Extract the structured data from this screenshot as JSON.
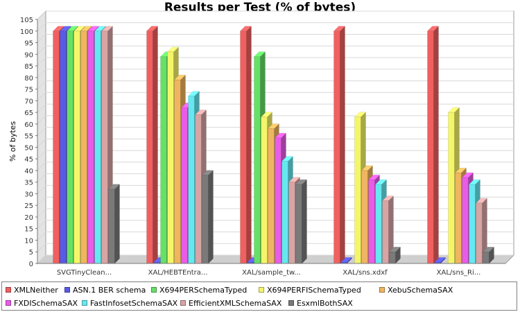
{
  "chart_data": {
    "type": "bar",
    "title": "Results per Test (% of bytes)",
    "ylabel": "% of bytes",
    "xlabel": "",
    "ylim": [
      0,
      105
    ],
    "y_ticks": [
      0,
      5,
      10,
      15,
      20,
      25,
      30,
      35,
      40,
      45,
      50,
      55,
      60,
      65,
      70,
      75,
      80,
      85,
      90,
      95,
      100,
      105
    ],
    "grid": true,
    "legend_position": "bottom",
    "categories": [
      "SVGTinyClean...",
      "XAL/HEBTEntra...",
      "XAL/sample_tw...",
      "XAL/sns.xdxf",
      "XAL/sns_Ri..."
    ],
    "series": [
      {
        "name": "XMLNeither",
        "color": "#f06060",
        "values": [
          100,
          100,
          100,
          100,
          100
        ]
      },
      {
        "name": "ASN.1 BER schema",
        "color": "#5a5ae8",
        "values": [
          100,
          0.5,
          0.5,
          0.5,
          0.5
        ]
      },
      {
        "name": "X694PERSchemaTyped",
        "color": "#66e066",
        "values": [
          100,
          89,
          89,
          0,
          0
        ]
      },
      {
        "name": "X694PERFISchemaTyped",
        "color": "#f5f56a",
        "values": [
          100,
          91,
          63,
          63,
          65
        ]
      },
      {
        "name": "XebuSchemaSAX",
        "color": "#f0b560",
        "values": [
          100,
          79,
          58,
          40,
          39
        ]
      },
      {
        "name": "FXDISchemaSAX",
        "color": "#e85ce8",
        "values": [
          100,
          67,
          54,
          36,
          37
        ]
      },
      {
        "name": "FastInfosetSchemaSAX",
        "color": "#66e8f0",
        "values": [
          100,
          72,
          44,
          34,
          34
        ]
      },
      {
        "name": "EfficientXMLSchemaSAX",
        "color": "#d8a4a4",
        "values": [
          100,
          64,
          35,
          27,
          26
        ]
      },
      {
        "name": "EsxmlBothSAX",
        "color": "#7a7a7a",
        "values": [
          32,
          38,
          34,
          5,
          5
        ]
      }
    ]
  }
}
